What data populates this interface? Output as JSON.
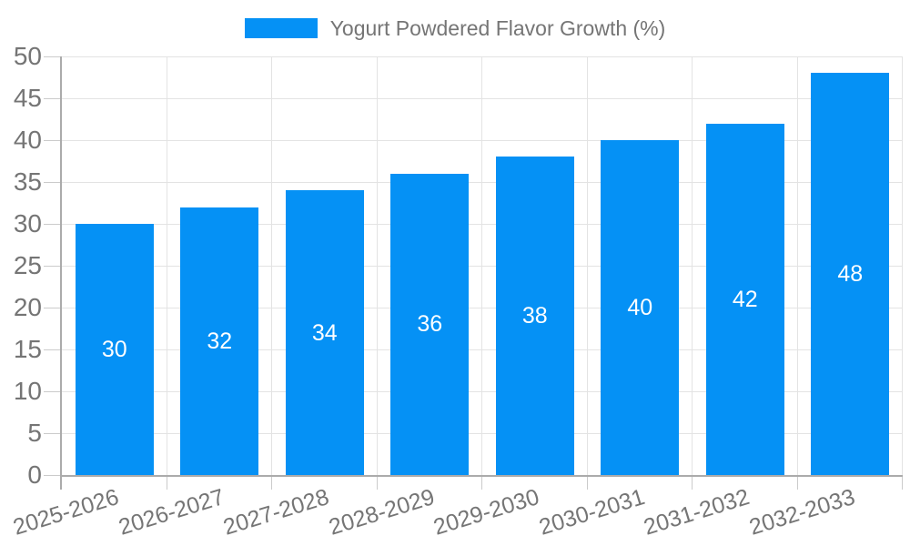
{
  "legend": {
    "label": "Yogurt Powdered Flavor Growth (%)"
  },
  "chart_data": {
    "type": "bar",
    "title": "",
    "categories": [
      "2025-2026",
      "2026-2027",
      "2027-2028",
      "2028-2029",
      "2029-2030",
      "2030-2031",
      "2031-2032",
      "2032-2033"
    ],
    "values": [
      30,
      32,
      34,
      36,
      38,
      40,
      42,
      48
    ],
    "series_name": "Yogurt Powdered Flavor Growth (%)",
    "xlabel": "",
    "ylabel": "",
    "ylim": [
      0,
      50
    ],
    "ytick_step": 5,
    "grid": true,
    "legend_position": "top-center",
    "value_labels": "inside-center-white",
    "x_label_rotation_deg": -17,
    "colors": {
      "bar": "#0591F5",
      "axis_text": "#757575",
      "value_label": "#FFFFFF",
      "gridline": "#E3E3E3",
      "axis_line": "#ABABAB",
      "tick": "#CBCBCB",
      "background": "#FFFFFF"
    }
  }
}
